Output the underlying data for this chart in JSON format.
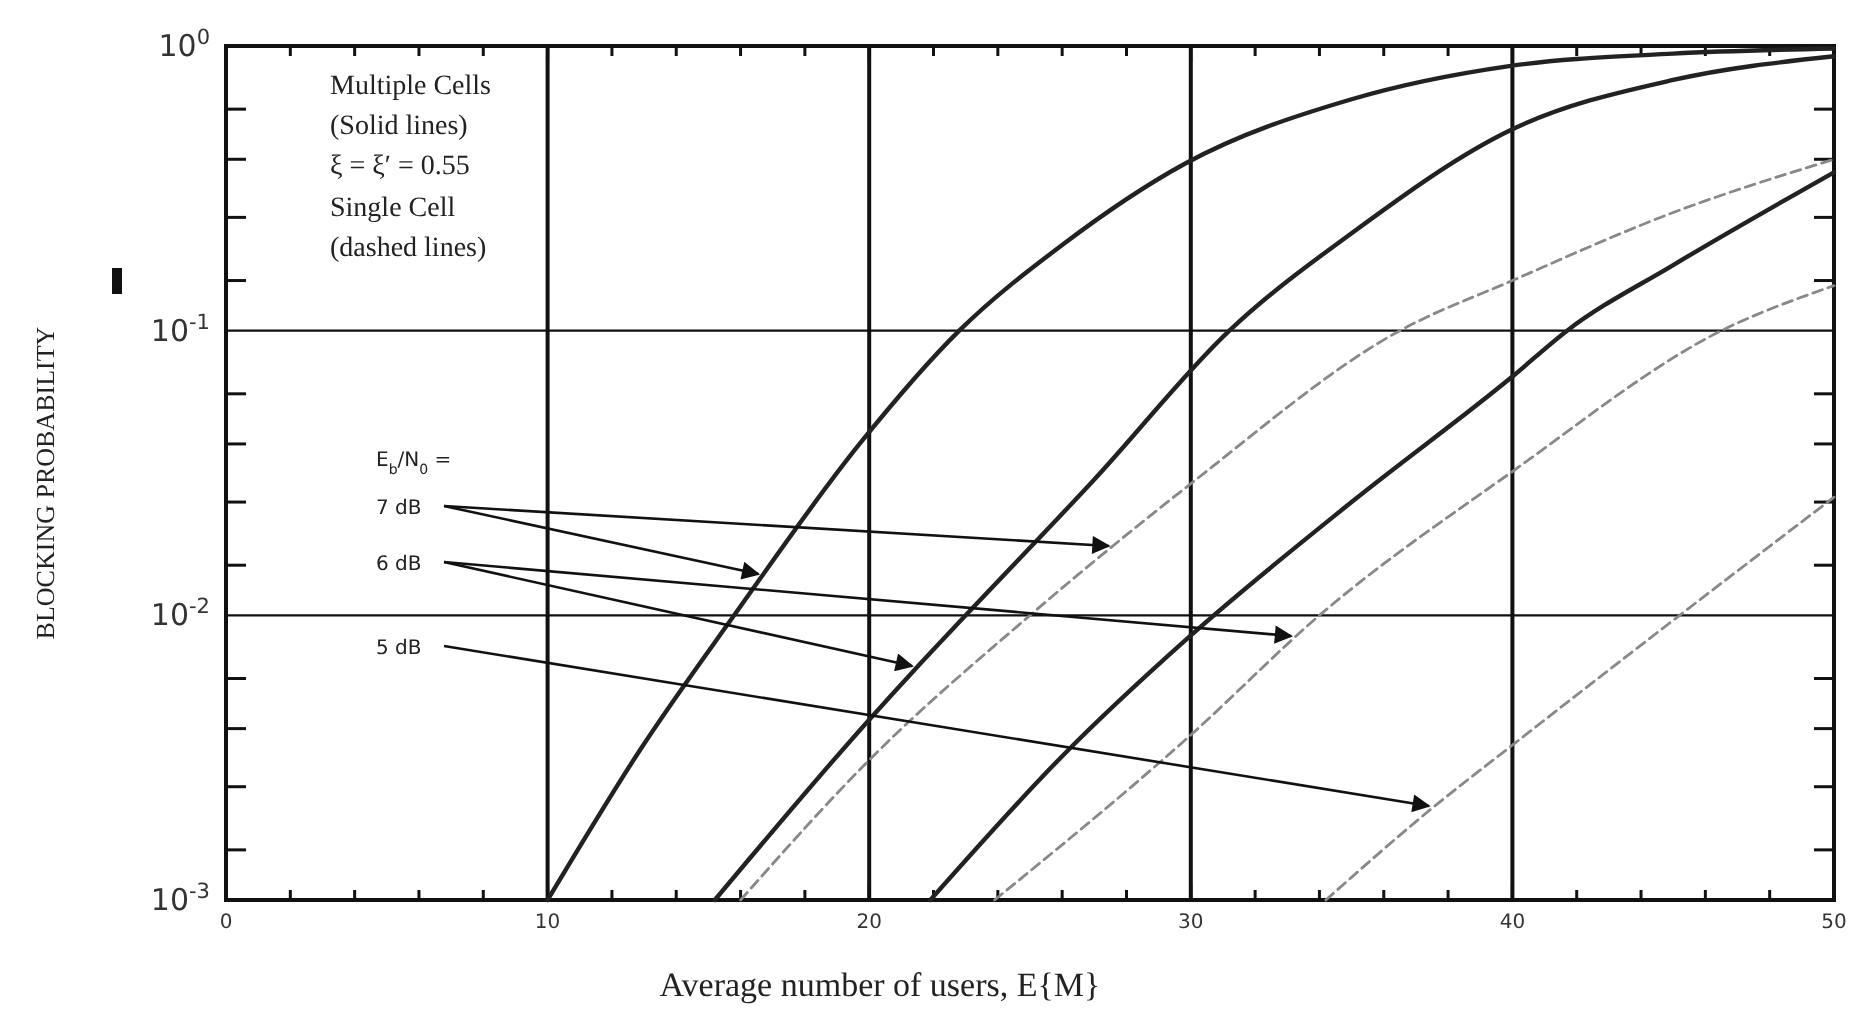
{
  "chart_data": {
    "type": "line",
    "xlabel": "Average number of users, E{M}",
    "ylabel": "BLOCKING PROBABILITY",
    "log": "y",
    "grid": true,
    "legend": false,
    "marker": "none",
    "xlim": [
      0,
      50
    ],
    "xticks": [
      0,
      {
        "value": 2,
        "label": null
      },
      {
        "value": 4,
        "label": null
      },
      {
        "value": 6,
        "label": null
      },
      {
        "value": 8,
        "label": null
      },
      10,
      {
        "value": 12,
        "label": null
      },
      {
        "value": 14,
        "label": null
      },
      {
        "value": 16,
        "label": null
      },
      {
        "value": 18,
        "label": null
      },
      20,
      {
        "value": 22,
        "label": null
      },
      {
        "value": 24,
        "label": null
      },
      {
        "value": 26,
        "label": null
      },
      {
        "value": 28,
        "label": null
      },
      30,
      {
        "value": 32,
        "label": null
      },
      {
        "value": 34,
        "label": null
      },
      {
        "value": 36,
        "label": null
      },
      {
        "value": 38,
        "label": null
      },
      40,
      {
        "value": 42,
        "label": null
      },
      {
        "value": 44,
        "label": null
      },
      {
        "value": 46,
        "label": null
      },
      {
        "value": 48,
        "label": null
      },
      50
    ],
    "ylim": [
      0.001,
      1
    ],
    "yticks": [
      {
        "value": 0.001,
        "label": "10$^{-3}$"
      },
      {
        "value": 0.0015,
        "label": null
      },
      {
        "value": 0.0025,
        "label": null
      },
      {
        "value": 0.004,
        "label": null
      },
      {
        "value": 0.006,
        "label": null
      },
      {
        "value": 0.01,
        "label": "10$^{-2}$"
      },
      {
        "value": 0.015,
        "label": null
      },
      {
        "value": 0.025,
        "label": null
      },
      {
        "value": 0.04,
        "label": null
      },
      {
        "value": 0.06,
        "label": null
      },
      {
        "value": 0.1,
        "label": "10$^{-1}$"
      },
      {
        "value": 0.15,
        "label": null
      },
      {
        "value": 0.25,
        "label": null
      },
      {
        "value": 0.4,
        "label": null
      },
      {
        "value": 0.6,
        "label": null
      },
      {
        "value": 1,
        "label": "10$^{0}$"
      }
    ],
    "annotations": [
      "Multiple Cells",
      "(Solid lines)",
      "ξ = ξ′ = 0.55",
      "Single Cell",
      "(dashed lines)",
      "E$_{b}$/N$_{0}$ ="
    ],
    "series": [
      {
        "name": "7 dB",
        "color": "#222222",
        "line_style": "solid",
        "x": [
          10,
          12.9,
          15.8,
          19.7,
          22.8,
          26,
          29.8,
          35,
          39.9,
          45,
          50
        ],
        "values": [
          0.001,
          0.0034,
          0.01,
          0.04,
          0.1,
          0.2,
          0.385,
          0.65,
          0.85,
          0.94,
          0.98
        ]
      },
      {
        "name": "6 dB",
        "color": "#222222",
        "line_style": "solid",
        "x": [
          15.2,
          20,
          21.5,
          23,
          27,
          31.2,
          35,
          40,
          45,
          50
        ],
        "values": [
          0.001,
          0.0043,
          0.0066,
          0.01,
          0.03,
          0.1,
          0.22,
          0.51,
          0.76,
          0.92
        ]
      },
      {
        "color": "#222222",
        "line_style": "solid",
        "x": [
          21.9,
          26,
          30,
          35,
          40,
          41.7,
          45,
          50
        ],
        "values": [
          0.001,
          0.0032,
          0.0085,
          0.025,
          0.069,
          0.1,
          0.17,
          0.36
        ]
      },
      {
        "color": "#888888",
        "line_style": "dashed",
        "x": [
          16,
          20,
          25,
          30,
          36.5,
          40,
          45,
          50
        ],
        "values": [
          0.001,
          0.0031,
          0.01,
          0.029,
          0.1,
          0.15,
          0.26,
          0.4
        ]
      },
      {
        "color": "#888888",
        "line_style": "dashed",
        "x": [
          23.9,
          30,
          34,
          40,
          46.5,
          50
        ],
        "values": [
          0.001,
          0.0038,
          0.01,
          0.032,
          0.1,
          0.144
        ]
      },
      {
        "name": "5 dB",
        "color": "#888888",
        "line_style": "dashed",
        "x": [
          34.2,
          37.5,
          40,
          45.2,
          50
        ],
        "values": [
          0.001,
          0.0021,
          0.0035,
          0.01,
          0.026
        ]
      }
    ]
  }
}
